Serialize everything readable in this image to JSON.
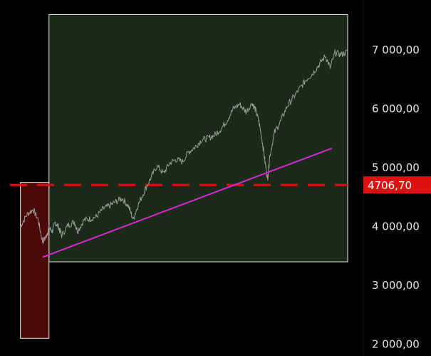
{
  "colors": {
    "background": "#000000",
    "green_zone": "#1c2a19",
    "red_zone": "#4a0a08",
    "price_line": "#9a9a9a",
    "trendline": "#d428d4",
    "level_line": "#dd1111",
    "price_tag": "#dd1111",
    "axis_text": "#e6e6e6",
    "box_border": "#e8e8e8"
  },
  "chart_data": {
    "type": "line",
    "y_axis": {
      "ticks": [
        7000,
        6000,
        5000,
        4000,
        3000,
        2000
      ],
      "tick_labels": [
        "7 000,00",
        "6 000,00",
        "5 000,00",
        "4 000,00",
        "3 000,00",
        "2 000,00"
      ],
      "range": [
        1900,
        7600
      ],
      "position": "right"
    },
    "x_axis": {
      "range": [
        0,
        100
      ],
      "labels": []
    },
    "level": {
      "value": 4706.7,
      "label": "4706,70",
      "style": "dashed"
    },
    "zones": [
      {
        "name": "green-zone",
        "x": [
          6,
          100
        ],
        "y": [
          3400,
          7600
        ]
      },
      {
        "name": "red-zone",
        "x": [
          -3,
          6
        ],
        "y": [
          2100,
          4750
        ]
      }
    ],
    "trendline": {
      "x": [
        4,
        100
      ],
      "y": [
        3480,
        5330
      ]
    },
    "series": [
      {
        "values": [
          [
            -3,
            4000
          ],
          [
            -1,
            4200
          ],
          [
            1,
            4290
          ],
          [
            2.5,
            4130
          ],
          [
            4,
            3740
          ],
          [
            5,
            3820
          ],
          [
            6,
            3980
          ],
          [
            7,
            3920
          ],
          [
            8,
            4070
          ],
          [
            9,
            3990
          ],
          [
            10,
            3850
          ],
          [
            12,
            4020
          ],
          [
            14,
            4080
          ],
          [
            15,
            3920
          ],
          [
            17,
            4110
          ],
          [
            19,
            4130
          ],
          [
            21,
            4170
          ],
          [
            23,
            4300
          ],
          [
            25,
            4350
          ],
          [
            27,
            4420
          ],
          [
            29,
            4480
          ],
          [
            31,
            4350
          ],
          [
            32.5,
            4120
          ],
          [
            34,
            4360
          ],
          [
            36,
            4600
          ],
          [
            38,
            4820
          ],
          [
            40,
            5030
          ],
          [
            42,
            4900
          ],
          [
            44,
            5080
          ],
          [
            46,
            5140
          ],
          [
            48,
            5100
          ],
          [
            50,
            5270
          ],
          [
            52,
            5350
          ],
          [
            54,
            5470
          ],
          [
            56,
            5500
          ],
          [
            58,
            5550
          ],
          [
            60,
            5650
          ],
          [
            62,
            5800
          ],
          [
            64,
            6000
          ],
          [
            66,
            6080
          ],
          [
            68,
            5950
          ],
          [
            70,
            6100
          ],
          [
            71,
            5980
          ],
          [
            72,
            5800
          ],
          [
            73,
            5500
          ],
          [
            74,
            5100
          ],
          [
            74.8,
            4800
          ],
          [
            75.5,
            5200
          ],
          [
            77,
            5600
          ],
          [
            79,
            5800
          ],
          [
            81,
            6050
          ],
          [
            83,
            6200
          ],
          [
            85,
            6350
          ],
          [
            87,
            6500
          ],
          [
            89,
            6600
          ],
          [
            91,
            6750
          ],
          [
            93,
            6900
          ],
          [
            94.5,
            6700
          ],
          [
            96,
            6950
          ],
          [
            98,
            6920
          ],
          [
            100,
            6970
          ]
        ]
      }
    ]
  }
}
